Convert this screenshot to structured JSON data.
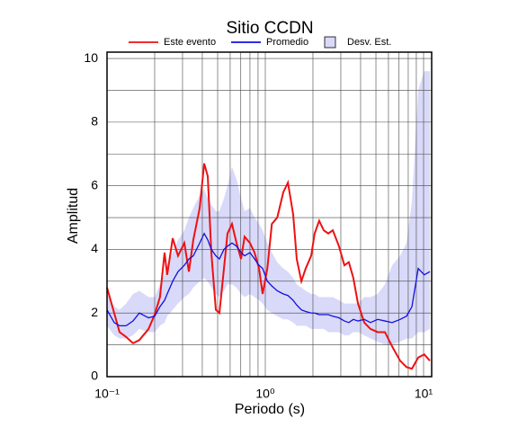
{
  "chart_data": {
    "type": "line",
    "title": "Sitio CCDN",
    "x_label": "Periodo (s)",
    "y_label": "Amplitud",
    "x_log": true,
    "grid": true,
    "legend_position": "top",
    "xlim": [
      0.1,
      11.25
    ],
    "ylim": [
      0,
      10.2
    ],
    "xticks": [
      {
        "value": 0.1,
        "label": "10⁻¹"
      },
      {
        "value": 1,
        "label": "10⁰"
      },
      {
        "value": 10,
        "label": "10¹"
      }
    ],
    "xminor_ticks": [
      0.2,
      0.3,
      0.4,
      0.5,
      0.6,
      0.7,
      0.8,
      0.9,
      2,
      3,
      4,
      5,
      6,
      7,
      8,
      9
    ],
    "yticks": [
      0,
      2,
      4,
      6,
      8,
      10
    ],
    "yminor_ticks": [
      1,
      3,
      5,
      7,
      9
    ],
    "x": [
      0.1,
      0.111,
      0.12,
      0.132,
      0.146,
      0.16,
      0.183,
      0.2,
      0.216,
      0.231,
      0.24,
      0.26,
      0.281,
      0.308,
      0.329,
      0.351,
      0.385,
      0.411,
      0.433,
      0.456,
      0.487,
      0.513,
      0.548,
      0.577,
      0.616,
      0.658,
      0.703,
      0.74,
      0.8,
      0.855,
      0.913,
      0.962,
      1.03,
      1.1,
      1.19,
      1.3,
      1.39,
      1.5,
      1.58,
      1.69,
      1.8,
      1.95,
      2.05,
      2.19,
      2.34,
      2.5,
      2.67,
      2.92,
      3.16,
      3.37,
      3.6,
      3.85,
      4.22,
      4.62,
      5.13,
      5.7,
      6.33,
      7.11,
      7.8,
      8.44,
      9.25,
      10.1,
      10.96
    ],
    "band": {
      "name": "Desv. Est.",
      "color": "#d9d9f9",
      "lower": [
        1.6,
        1.3,
        1.2,
        1.2,
        1.3,
        1.5,
        1.4,
        1.4,
        1.6,
        1.7,
        1.9,
        2.1,
        2.3,
        2.5,
        2.6,
        2.8,
        3.0,
        3.1,
        3.0,
        2.8,
        2.6,
        2.5,
        2.7,
        2.9,
        2.9,
        2.8,
        2.6,
        2.5,
        2.6,
        2.5,
        2.4,
        2.3,
        2.1,
        2.0,
        1.9,
        1.8,
        1.8,
        1.7,
        1.6,
        1.6,
        1.6,
        1.5,
        1.5,
        1.5,
        1.5,
        1.4,
        1.4,
        1.4,
        1.3,
        1.3,
        1.4,
        1.4,
        1.3,
        1.2,
        1.1,
        1.0,
        1.0,
        1.1,
        1.2,
        1.2,
        1.4,
        1.4,
        1.5
      ],
      "upper": [
        2.6,
        2.2,
        2.1,
        2.3,
        2.6,
        2.7,
        2.5,
        2.5,
        2.9,
        3.2,
        3.5,
        3.9,
        4.3,
        4.6,
        5.0,
        5.3,
        5.7,
        5.9,
        5.6,
        5.4,
        5.2,
        5.2,
        5.6,
        6.0,
        6.6,
        6.2,
        5.6,
        5.2,
        5.3,
        5.0,
        4.8,
        4.6,
        4.2,
        3.9,
        3.6,
        3.4,
        3.3,
        3.1,
        2.9,
        2.8,
        2.7,
        2.6,
        2.6,
        2.5,
        2.5,
        2.5,
        2.5,
        2.4,
        2.3,
        2.3,
        2.3,
        2.3,
        2.5,
        2.5,
        2.6,
        2.9,
        3.5,
        3.8,
        4.2,
        5.5,
        9.0,
        9.6,
        9.6
      ]
    },
    "series": [
      {
        "name": "Este evento",
        "color": "#ee1111",
        "values": [
          2.8,
          2.0,
          1.4,
          1.25,
          1.05,
          1.15,
          1.5,
          1.95,
          2.5,
          3.9,
          3.2,
          4.35,
          3.8,
          4.2,
          3.3,
          4.3,
          5.3,
          6.7,
          6.3,
          3.9,
          2.1,
          2.0,
          3.4,
          4.5,
          4.8,
          4.2,
          3.7,
          4.4,
          4.2,
          3.9,
          3.4,
          2.6,
          3.4,
          4.8,
          5.0,
          5.8,
          6.1,
          5.1,
          3.7,
          3.0,
          3.4,
          3.8,
          4.5,
          4.9,
          4.6,
          4.5,
          4.6,
          4.1,
          3.5,
          3.6,
          3.1,
          2.3,
          1.7,
          1.5,
          1.4,
          1.4,
          0.95,
          0.5,
          0.3,
          0.25,
          0.6,
          0.7,
          0.5
        ]
      },
      {
        "name": "Promedio",
        "color": "#1111dd",
        "values": [
          2.1,
          1.7,
          1.6,
          1.6,
          1.75,
          2.0,
          1.85,
          1.9,
          2.2,
          2.4,
          2.6,
          3.0,
          3.3,
          3.5,
          3.7,
          3.8,
          4.2,
          4.5,
          4.3,
          4.0,
          3.8,
          3.7,
          4.0,
          4.1,
          4.2,
          4.1,
          3.9,
          3.8,
          3.9,
          3.7,
          3.5,
          3.4,
          3.0,
          2.85,
          2.7,
          2.6,
          2.55,
          2.4,
          2.25,
          2.1,
          2.05,
          2.0,
          2.0,
          1.95,
          1.95,
          1.95,
          1.9,
          1.85,
          1.75,
          1.7,
          1.8,
          1.75,
          1.8,
          1.7,
          1.8,
          1.75,
          1.7,
          1.8,
          1.9,
          2.2,
          3.4,
          3.2,
          3.3
        ]
      }
    ]
  }
}
